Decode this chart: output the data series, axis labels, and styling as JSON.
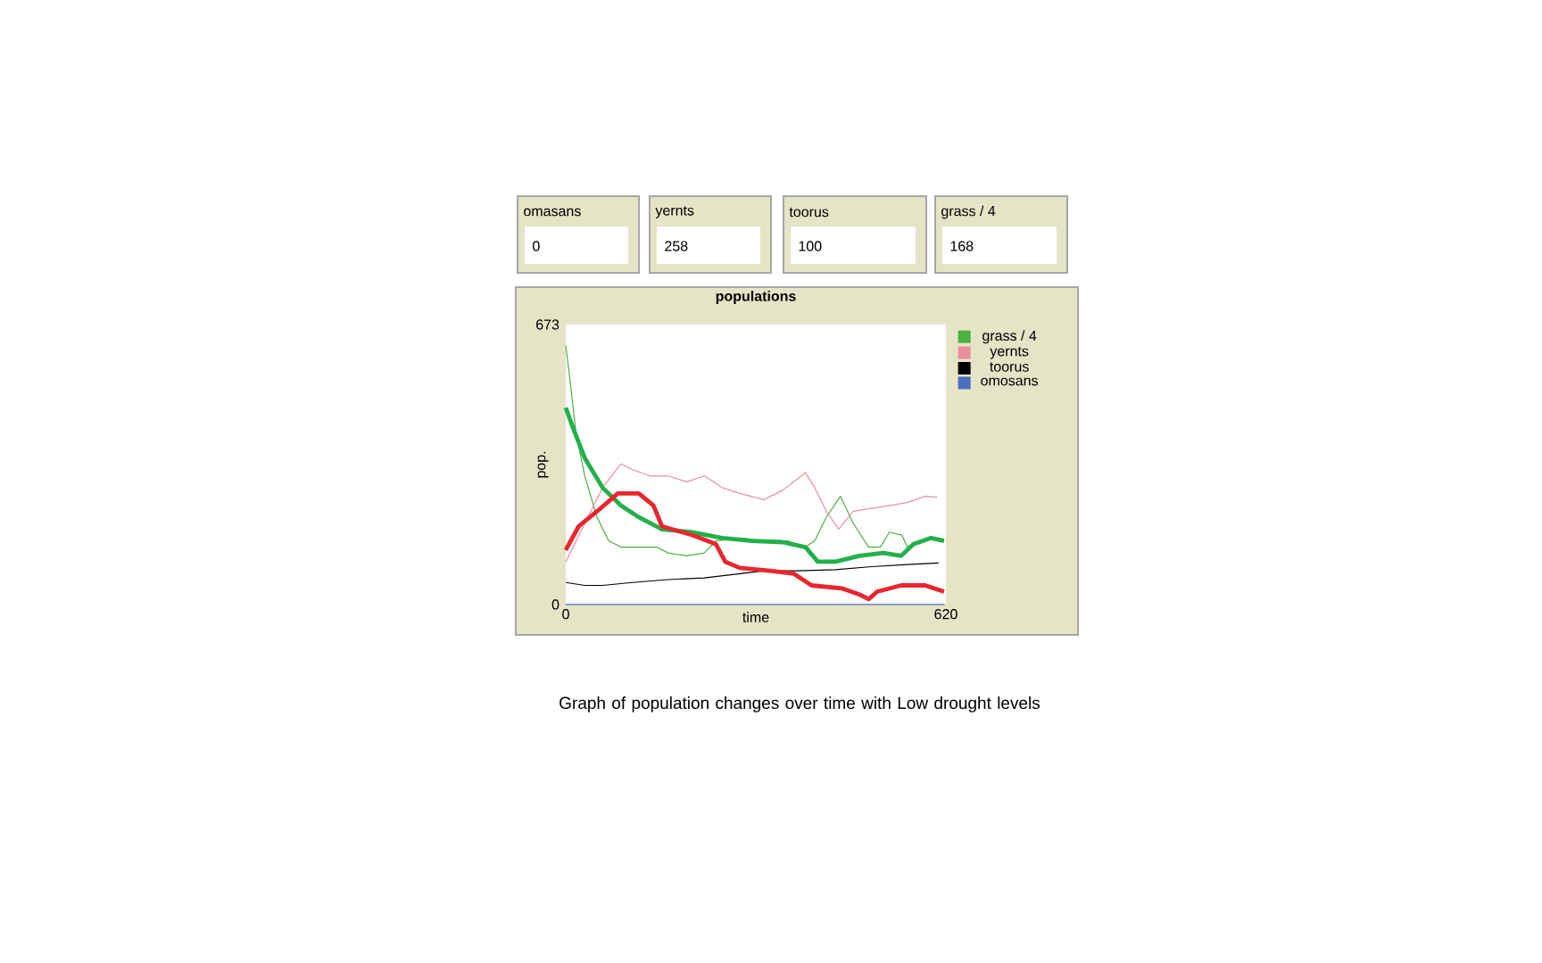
{
  "chart_data": [
    {
      "type": "other",
      "annotations": [
        "omasans",
        "0",
        "yernts",
        "258",
        "toorus",
        "100",
        "grass / 4",
        "168"
      ]
    },
    {
      "type": "line",
      "title": "populations",
      "xlabel": "time",
      "ylabel": "pop.",
      "xlim": [
        0,
        620
      ],
      "ylim": [
        0,
        673
      ],
      "xticks": [
        0,
        620
      ],
      "yticks": [
        0,
        673
      ],
      "grid": false,
      "legend": "right",
      "marker": "none",
      "line_style": "solid",
      "annotations": [
        "Graph of population changes over time with Low drought levels"
      ],
      "series": [
        {
          "name": "grass / 4",
          "color": "#4cb040",
          "x": [
            0,
            7,
            17,
            31,
            51,
            70,
            90,
            114,
            148,
            167,
            197,
            226,
            245,
            284,
            323,
            362,
            391,
            406,
            425,
            448,
            469,
            494,
            513,
            528,
            548,
            557,
            576,
            596,
            615
          ],
          "values": [
            623,
            538,
            409,
            309,
            210,
            153,
            138,
            138,
            138,
            124,
            117,
            124,
            153,
            160,
            153,
            153,
            138,
            153,
            210,
            260,
            195,
            138,
            138,
            174,
            167,
            138,
            153,
            160,
            153
          ]
        },
        {
          "name": "yernts",
          "color": "#e890a0",
          "x": [
            0,
            12,
            31,
            60,
            90,
            109,
            138,
            167,
            197,
            226,
            255,
            284,
            323,
            353,
            372,
            391,
            406,
            425,
            445,
            469,
            499,
            528,
            557,
            586,
            606
          ],
          "values": [
            103,
            138,
            195,
            281,
            338,
            324,
            309,
            309,
            295,
            309,
            281,
            267,
            252,
            274,
            295,
            317,
            281,
            224,
            181,
            224,
            231,
            238,
            245,
            260,
            258
          ]
        },
        {
          "name": "toorus",
          "color": "#000000",
          "x": [
            0,
            31,
            60,
            109,
            167,
            226,
            284,
            323,
            382,
            440,
            499,
            557,
            608
          ],
          "values": [
            53,
            46,
            46,
            53,
            60,
            64,
            74,
            81,
            81,
            84,
            91,
            96,
            100
          ]
        },
        {
          "name": "omosans",
          "color": "#4a6fc0",
          "x": [
            0,
            618
          ],
          "values": [
            0,
            0
          ]
        },
        {
          "color": "#22b04a",
          "x": [
            0,
            12,
            31,
            60,
            90,
            119,
            157,
            206,
            255,
            304,
            353,
            391,
            411,
            440,
            479,
            518,
            547,
            567,
            596,
            617
          ],
          "values": [
            473,
            424,
            352,
            281,
            238,
            210,
            181,
            174,
            160,
            153,
            150,
            138,
            103,
            103,
            117,
            124,
            117,
            145,
            160,
            153
          ]
        },
        {
          "color": "#e8262e",
          "x": [
            0,
            21,
            51,
            85,
            119,
            143,
            157,
            206,
            245,
            260,
            284,
            333,
            372,
            401,
            450,
            479,
            494,
            508,
            547,
            586,
            617
          ],
          "values": [
            131,
            188,
            224,
            267,
            267,
            238,
            188,
            167,
            145,
            103,
            88,
            81,
            74,
            46,
            39,
            24,
            13,
            31,
            46,
            46,
            31
          ]
        }
      ]
    }
  ]
}
